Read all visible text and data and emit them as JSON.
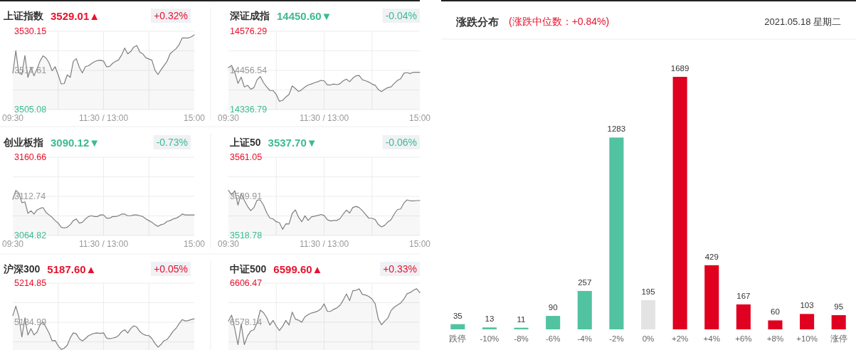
{
  "chart_data": [
    {
      "type": "area",
      "title": "上证指数",
      "subtitle": "3529.01▲",
      "annotations": [
        "+0.32%"
      ],
      "categories": [
        "09:30",
        null,
        null,
        null,
        null,
        null,
        null,
        null,
        null,
        null,
        null,
        null,
        null,
        null,
        null,
        null,
        null,
        null,
        null,
        null,
        null,
        null,
        null,
        null,
        null,
        null,
        null,
        null,
        null,
        null,
        "11:30 / 13:00",
        null,
        null,
        null,
        null,
        null,
        null,
        null,
        null,
        null,
        null,
        null,
        null,
        null,
        null,
        null,
        null,
        null,
        null,
        null,
        null,
        null,
        null,
        null,
        null,
        null,
        null,
        null,
        null,
        null,
        "15:00"
      ],
      "series": [
        {
          "color": "#7f7f7f",
          "values": [
            3516.7,
            3523.9,
            3516.8,
            3516.3,
            3522.4,
            3515.4,
            3518.6,
            3515.9,
            3518.1,
            3520.6,
            3522.3,
            3521.6,
            3520.0,
            3517.5,
            3518.8,
            3516.2,
            3513.3,
            3513.4,
            3516.2,
            3515.4,
            3520.5,
            3521.4,
            3518.6,
            3516.8,
            3518.8,
            3519.1,
            3519.8,
            3520.4,
            3520.8,
            3520.9,
            3520.6,
            3518.8,
            3518.9,
            3519.9,
            3520.5,
            3521.0,
            3522.6,
            3524.8,
            3522.9,
            3523.7,
            3525.1,
            3525.6,
            3523.5,
            3522.9,
            3521.7,
            3521.3,
            3520.9,
            3517.7,
            3516.3,
            3517.8,
            3519.2,
            3520.5,
            3522.9,
            3523.8,
            3524.6,
            3525.9,
            3528.0,
            3528.0,
            3528.0,
            3528.4,
            3529.0
          ]
        }
      ],
      "ylim": [
        3505.08,
        3530.15
      ],
      "yticks": [
        3505.08,
        {
          "value": 3511.35,
          "label": null
        },
        3517.61,
        {
          "value": 3523.88,
          "label": null
        },
        3530.15
      ],
      "grid": true
    },
    {
      "type": "area",
      "title": "深证成指",
      "subtitle": "14450.60▼",
      "annotations": [
        "-0.04%"
      ],
      "categories": [
        "09:30",
        null,
        null,
        null,
        null,
        null,
        null,
        null,
        null,
        null,
        null,
        null,
        null,
        null,
        null,
        null,
        null,
        null,
        null,
        null,
        null,
        null,
        null,
        null,
        null,
        null,
        null,
        null,
        null,
        null,
        "11:30 / 13:00",
        null,
        null,
        null,
        null,
        null,
        null,
        null,
        null,
        null,
        null,
        null,
        null,
        null,
        null,
        null,
        null,
        null,
        null,
        null,
        null,
        null,
        null,
        null,
        null,
        null,
        null,
        null,
        null,
        null,
        "15:00"
      ],
      "series": [
        {
          "color": "#7f7f7f",
          "values": [
            14465,
            14472,
            14451,
            14417,
            14436,
            14406,
            14411,
            14399,
            14404,
            14428,
            14438,
            14419,
            14406,
            14395,
            14395,
            14383,
            14362,
            14365,
            14375,
            14383,
            14409,
            14401,
            14392,
            14398,
            14406,
            14412,
            14415,
            14419,
            14422,
            14426,
            14425,
            14412,
            14412,
            14415,
            14413,
            14416,
            14425,
            14430,
            14422,
            14433,
            14440,
            14441,
            14428,
            14425,
            14421,
            14415,
            14411,
            14398,
            14392,
            14399,
            14404,
            14406,
            14417,
            14426,
            14431,
            14448,
            14450,
            14447,
            14451,
            14451,
            14451
          ]
        }
      ],
      "ylim": [
        14336.79,
        14576.29
      ],
      "yticks": [
        14336.79,
        {
          "value": 14396.67,
          "label": null
        },
        14456.54,
        {
          "value": 14516.42,
          "label": null
        },
        14576.29
      ],
      "grid": true
    },
    {
      "type": "area",
      "title": "创业板指",
      "subtitle": "3090.12▼",
      "annotations": [
        "-0.73%"
      ],
      "categories": [
        "09:30",
        null,
        null,
        null,
        null,
        null,
        null,
        null,
        null,
        null,
        null,
        null,
        null,
        null,
        null,
        null,
        null,
        null,
        null,
        null,
        null,
        null,
        null,
        null,
        null,
        null,
        null,
        null,
        null,
        null,
        "11:30 / 13:00",
        null,
        null,
        null,
        null,
        null,
        null,
        null,
        null,
        null,
        null,
        null,
        null,
        null,
        null,
        null,
        null,
        null,
        null,
        null,
        null,
        null,
        null,
        null,
        null,
        null,
        null,
        null,
        null,
        null,
        "15:00"
      ],
      "series": [
        {
          "color": "#7f7f7f",
          "values": [
            3109,
            3120,
            3117,
            3105,
            3106,
            3092,
            3095,
            3091,
            3096,
            3098,
            3099,
            3093,
            3090,
            3087,
            3083,
            3080,
            3075,
            3074,
            3075,
            3078,
            3083,
            3085,
            3080,
            3081,
            3085,
            3088,
            3089,
            3088,
            3088,
            3090,
            3090,
            3086,
            3086,
            3088,
            3088,
            3089,
            3091,
            3091,
            3089,
            3089,
            3090,
            3090,
            3089,
            3088,
            3085,
            3083,
            3081,
            3078,
            3076,
            3078,
            3079,
            3082,
            3083,
            3085,
            3086,
            3088,
            3091,
            3090,
            3090,
            3090,
            3090
          ]
        }
      ],
      "ylim": [
        3064.82,
        3160.66
      ],
      "yticks": [
        3064.82,
        {
          "value": 3088.78,
          "label": null
        },
        3112.74,
        {
          "value": 3136.7,
          "label": null
        },
        3160.66
      ],
      "grid": true
    },
    {
      "type": "area",
      "title": "上证50",
      "subtitle": "3537.70▼",
      "annotations": [
        "-0.06%"
      ],
      "categories": [
        "09:30",
        null,
        null,
        null,
        null,
        null,
        null,
        null,
        null,
        null,
        null,
        null,
        null,
        null,
        null,
        null,
        null,
        null,
        null,
        null,
        null,
        null,
        null,
        null,
        null,
        null,
        null,
        null,
        null,
        null,
        "11:30 / 13:00",
        null,
        null,
        null,
        null,
        null,
        null,
        null,
        null,
        null,
        null,
        null,
        null,
        null,
        null,
        null,
        null,
        null,
        null,
        null,
        null,
        null,
        null,
        null,
        null,
        null,
        null,
        null,
        null,
        null,
        "15:00"
      ],
      "series": [
        {
          "color": "#7f7f7f",
          "values": [
            3543.1,
            3540.7,
            3542.9,
            3535.2,
            3541.4,
            3537.7,
            3534.5,
            3532.2,
            3533.9,
            3537.9,
            3537.9,
            3535.2,
            3531.1,
            3528.2,
            3527.7,
            3526.2,
            3525.7,
            3522.1,
            3525.1,
            3525.0,
            3530.7,
            3532.6,
            3528.6,
            3526.2,
            3529.4,
            3526.9,
            3528.8,
            3529.2,
            3529.6,
            3530.1,
            3529.6,
            3527.3,
            3526.6,
            3526.9,
            3526.9,
            3527.9,
            3530.4,
            3532.5,
            3530.9,
            3533.9,
            3534.5,
            3533.8,
            3532.2,
            3530.2,
            3528.1,
            3528.1,
            3527.4,
            3524.7,
            3523.4,
            3524.3,
            3526.1,
            3527.3,
            3530.4,
            3532.8,
            3533.1,
            3536.3,
            3538.0,
            3537.5,
            3537.5,
            3537.6,
            3537.7
          ]
        }
      ],
      "ylim": [
        3518.78,
        3561.05
      ],
      "yticks": [
        3518.78,
        {
          "value": 3529.35,
          "label": null
        },
        3539.91,
        {
          "value": 3550.48,
          "label": null
        },
        3561.05
      ],
      "grid": true
    },
    {
      "type": "area",
      "title": "沪深300",
      "subtitle": "5187.60▲",
      "annotations": [
        "+0.05%"
      ],
      "categories": [
        null,
        null,
        null,
        null,
        null,
        null,
        null,
        null,
        null,
        null,
        null,
        null,
        null,
        null,
        null,
        null,
        null,
        null,
        null,
        null,
        null,
        null,
        null,
        null,
        null,
        null,
        null,
        null,
        null,
        null,
        null,
        null,
        null,
        null,
        null,
        null,
        null,
        null,
        null,
        null,
        null,
        null,
        null,
        null,
        null,
        null,
        null,
        null,
        null,
        null,
        null,
        null,
        null,
        null,
        null,
        null,
        null,
        null,
        null,
        null,
        null
      ],
      "series": [
        {
          "color": "#7f7f7f",
          "values": [
            5190.1,
            5197.3,
            5189.2,
            5173.8,
            5188.3,
            5175.3,
            5180.1,
            5175.3,
            5177.4,
            5183.0,
            5185.2,
            5181.1,
            5176.7,
            5170.9,
            5171.1,
            5167.1,
            5164.3,
            5165.2,
            5167.5,
            5173.1,
            5176.9,
            5176.1,
            5172.4,
            5170.7,
            5172.5,
            5174.7,
            5175.8,
            5176.6,
            5176.8,
            5176.5,
            5176.9,
            5173.0,
            5172.4,
            5172.9,
            5173.5,
            5175.0,
            5177.8,
            5179.3,
            5176.8,
            5180.2,
            5182.3,
            5181.3,
            5177.9,
            5176.0,
            5175.0,
            5174.8,
            5172.5,
            5168.9,
            5166.0,
            5168.0,
            5170.9,
            5171.8,
            5174.7,
            5178.1,
            5180.4,
            5184.0,
            5187.0,
            5186.0,
            5186.3,
            5187.1,
            5187.6
          ]
        }
      ],
      "ylim": [
        5163.82,
        5214.85
      ],
      "yticks": [
        {
          "value": 5170.06,
          "label": null
        },
        5184.99,
        {
          "value": 5199.92,
          "label": null
        },
        5214.85
      ],
      "grid": true,
      "tick_labels": "y"
    },
    {
      "type": "area",
      "title": "中证500",
      "subtitle": "6599.60▲",
      "annotations": [
        "+0.33%"
      ],
      "categories": [
        null,
        null,
        null,
        null,
        null,
        null,
        null,
        null,
        null,
        null,
        null,
        null,
        null,
        null,
        null,
        null,
        null,
        null,
        null,
        null,
        null,
        null,
        null,
        null,
        null,
        null,
        null,
        null,
        null,
        null,
        null,
        null,
        null,
        null,
        null,
        null,
        null,
        null,
        null,
        null,
        null,
        null,
        null,
        null,
        null,
        null,
        null,
        null,
        null,
        null,
        null,
        null,
        null,
        null,
        null,
        null,
        null,
        null,
        null,
        null,
        null
      ],
      "series": [
        {
          "color": "#7f7f7f",
          "values": [
            6579.0,
            6583.3,
            6573.5,
            6561.9,
            6576.9,
            6562.0,
            6568.3,
            6571.8,
            6572.7,
            6577.8,
            6586.9,
            6585.1,
            6581.5,
            6576.1,
            6579.5,
            6575.3,
            6572.1,
            6575.2,
            6579.5,
            6576.1,
            6585.5,
            6580.4,
            6579.6,
            6578.2,
            6582.1,
            6583.7,
            6584.8,
            6585.4,
            6586.2,
            6587.8,
            6591.5,
            6586.1,
            6586.0,
            6587.5,
            6588.5,
            6590.5,
            6594.2,
            6598.6,
            6593.8,
            6601.0,
            6601.3,
            6602.3,
            6598.3,
            6597.9,
            6596.8,
            6595.0,
            6591.6,
            6580.4,
            6576.3,
            6579.0,
            6581.2,
            6586.7,
            6589.1,
            6590.6,
            6592.1,
            6594.9,
            6598.8,
            6599.7,
            6601.3,
            6602.4,
            6599.6
          ]
        }
      ],
      "ylim": [
        6558.05,
        6606.47
      ],
      "yticks": [
        {
          "value": 6563.98,
          "label": null
        },
        6578.14,
        {
          "value": 6592.31,
          "label": null
        },
        6606.47
      ],
      "grid": true,
      "tick_labels": "y"
    },
    {
      "type": "bar",
      "title": "涨跌分布",
      "subtitle": "(涨跌中位数：+0.84%)",
      "annotations": [
        "2021.05.18 星期二"
      ],
      "categories": [
        "跌停",
        "-10%",
        "-8%",
        "-6%",
        "-4%",
        "-2%",
        "0%",
        "+2%",
        "+4%",
        "+6%",
        "+8%",
        "+10%",
        "涨停"
      ],
      "values": [
        35,
        13,
        11,
        90,
        257,
        1283,
        195,
        1689,
        429,
        167,
        60,
        103,
        95
      ],
      "colors": [
        "#52c3a1",
        "#52c3a1",
        "#52c3a1",
        "#52c3a1",
        "#52c3a1",
        "#52c3a1",
        "#e3e3e3",
        "#e0001f",
        "#e0001f",
        "#e0001f",
        "#e0001f",
        "#e0001f",
        "#e0001f"
      ],
      "data_labels": true
    }
  ]
}
